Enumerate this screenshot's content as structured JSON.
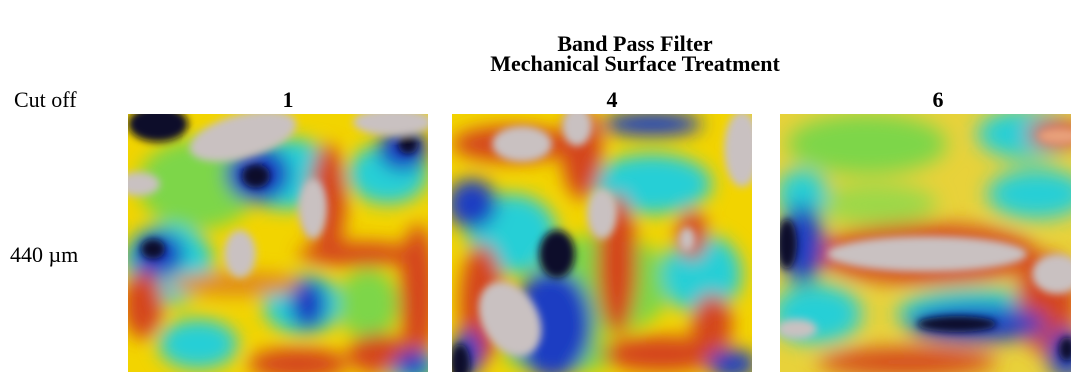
{
  "header": {
    "title_line1": "Band Pass Filter",
    "title_line2": "Mechanical Surface Treatment"
  },
  "row_header": {
    "cutoff_label": "Cut off",
    "cutoff_value": "440 µm"
  },
  "columns": [
    {
      "label": "1"
    },
    {
      "label": "4"
    },
    {
      "label": "6"
    }
  ],
  "colormap": {
    "base": "#f2d400",
    "red": "#d4441e",
    "peak": "#c9c1c1",
    "cyan": "#27cfd6",
    "blue": "#1b3dc2",
    "deep": "#0a0c2a"
  }
}
